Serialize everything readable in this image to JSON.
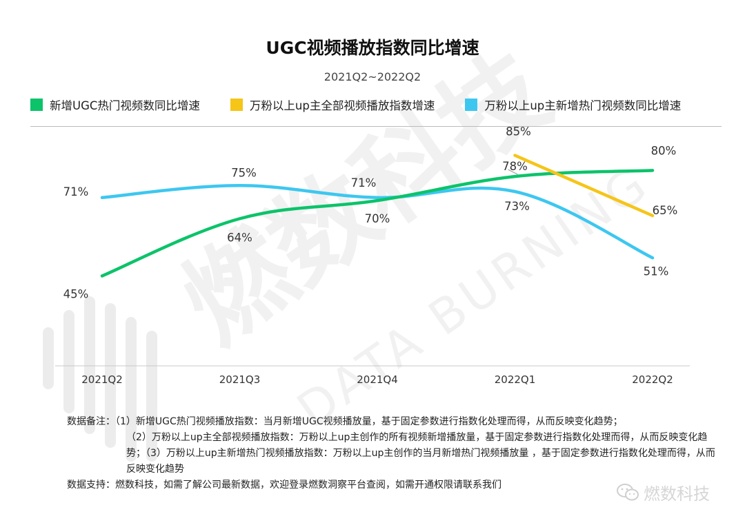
{
  "chart_data": {
    "type": "line",
    "title": "UGC视频播放指数同比增速",
    "subtitle": "2021Q2~2022Q2",
    "categories": [
      "2021Q2",
      "2021Q3",
      "2021Q4",
      "2022Q1",
      "2022Q2"
    ],
    "series": [
      {
        "name": "新增UGC热门视频数同比增速",
        "color": "#0cc36a",
        "x": [
          "2021Q2",
          "2021Q3",
          "2021Q4",
          "2022Q1",
          "2022Q2"
        ],
        "values": [
          45,
          64,
          70,
          78,
          80
        ],
        "labels": [
          "45%",
          "64%",
          "70%",
          "78%",
          "80%"
        ]
      },
      {
        "name": "万粉以上up主全部视频播放指数增速",
        "color": "#f5c518",
        "x": [
          "2022Q1",
          "2022Q2"
        ],
        "values": [
          85,
          65
        ],
        "labels": [
          "85%",
          "65%"
        ]
      },
      {
        "name": "万粉以上up主新增热门视频数同比增速",
        "color": "#3dc7f0",
        "x": [
          "2021Q2",
          "2021Q3",
          "2021Q4",
          "2022Q1",
          "2022Q2"
        ],
        "values": [
          71,
          75,
          71,
          73,
          51
        ],
        "labels": [
          "71%",
          "75%",
          "71%",
          "73%",
          "51%"
        ]
      }
    ],
    "xlabel": "",
    "ylabel": "",
    "grid": false,
    "legend": "top"
  },
  "notes": {
    "line1": "数据备注：（1）新增UGC热门视频播放指数：当月新增UGC视频播放量，基于固定参数进行指数化处理而得，从而反映变化趋势；",
    "line2": "（2）万粉以上up主全部视频播放指数：万粉以上up主创作的所有视频新增播放量，基于固定参数进行指数化处理而得，从而反映变化趋势；（3）万粉以上up主新增热门视频播放指数：万粉以上up主创作的当月新增热门视频播放量 ，基于固定参数进行指数化处理而得，从而反映变化趋势",
    "line3": "数据支持：燃数科技，如需了解公司最新数据，欢迎登录燃数洞察平台查阅，如需开通权限请联系我们"
  },
  "brand": {
    "name": "燃数科技",
    "icon": "wechat-icon"
  },
  "watermark": {
    "cn": "燃数科技",
    "en": "DATA BURNING"
  }
}
